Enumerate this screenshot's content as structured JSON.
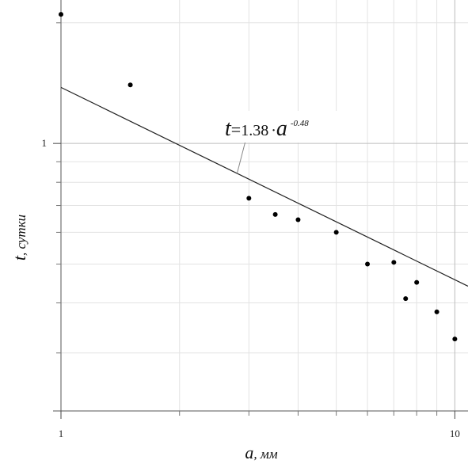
{
  "chart_data": {
    "type": "scatter",
    "x_scale": "log",
    "y_scale": "log",
    "xlim": [
      1,
      10.8
    ],
    "ylim": [
      0.215,
      2.28
    ],
    "x_ticks": [
      {
        "value": 1,
        "label": "1"
      },
      {
        "value": 10,
        "label": "10"
      }
    ],
    "y_ticks": [
      {
        "value": 1,
        "label": "1"
      }
    ],
    "x_minor_grid": [
      2,
      3,
      4,
      5,
      6,
      7,
      8,
      9
    ],
    "y_minor_grid": [
      0.3,
      0.4,
      0.5,
      0.6,
      0.7,
      0.8,
      0.9,
      2
    ],
    "grid": true,
    "xlabel": {
      "var": "a",
      "unit": ", мм"
    },
    "ylabel": {
      "var": "t",
      "unit": ", сутки"
    },
    "points": [
      {
        "x": 1.0,
        "y": 2.1
      },
      {
        "x": 1.5,
        "y": 1.4
      },
      {
        "x": 3.0,
        "y": 0.73
      },
      {
        "x": 3.5,
        "y": 0.665
      },
      {
        "x": 4.0,
        "y": 0.645
      },
      {
        "x": 5.0,
        "y": 0.6
      },
      {
        "x": 6.0,
        "y": 0.5
      },
      {
        "x": 7.0,
        "y": 0.505
      },
      {
        "x": 7.5,
        "y": 0.41
      },
      {
        "x": 8.0,
        "y": 0.45
      },
      {
        "x": 9.0,
        "y": 0.38
      },
      {
        "x": 10.0,
        "y": 0.325
      }
    ],
    "fit": {
      "coef": 1.38,
      "exponent": -0.48,
      "x_range": [
        1,
        10.8
      ],
      "equation": {
        "lhs": "t",
        "eq": "=",
        "coef": "1.38",
        "dot": "·",
        "var": "a",
        "exp": "-0.48"
      },
      "leader_from_x": 2.8
    }
  }
}
